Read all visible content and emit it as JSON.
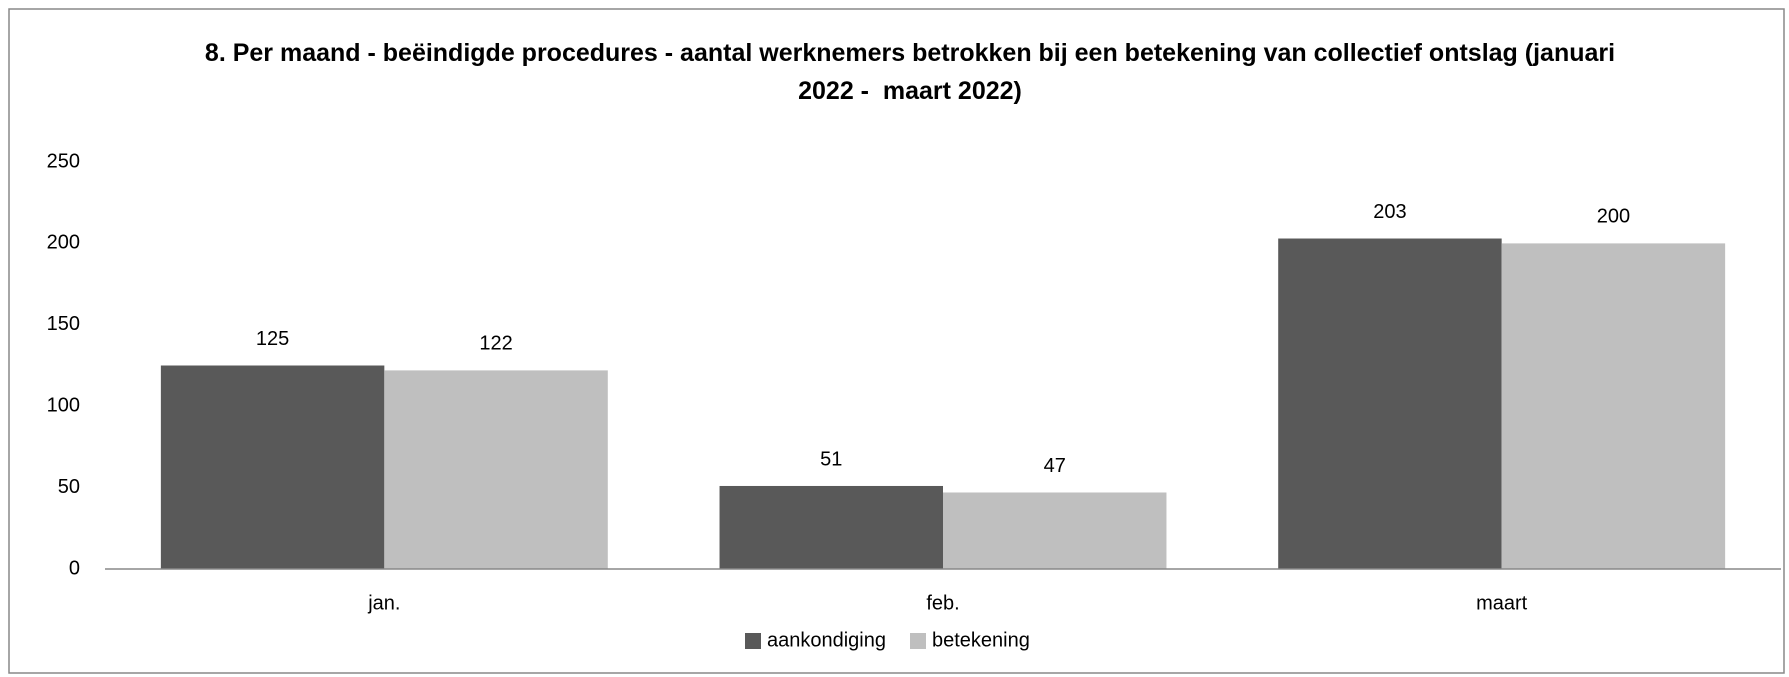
{
  "chart_data": {
    "type": "bar",
    "title": "8. Per maand - beëindigde procedures - aantal werknemers betrokken bij een betekening van collectief ontslag (januari 2022 -  maart 2022)",
    "categories": [
      "jan.",
      "feb.",
      "maart"
    ],
    "series": [
      {
        "name": "aankondiging",
        "color": "#595959",
        "values": [
          125,
          51,
          203
        ]
      },
      {
        "name": "betekening",
        "color": "#bfbfbf",
        "values": [
          122,
          47,
          200
        ]
      }
    ],
    "ylim": [
      0,
      250
    ],
    "yticks": [
      0,
      50,
      100,
      150,
      200,
      250
    ],
    "grid": false,
    "legend": "bottom"
  }
}
